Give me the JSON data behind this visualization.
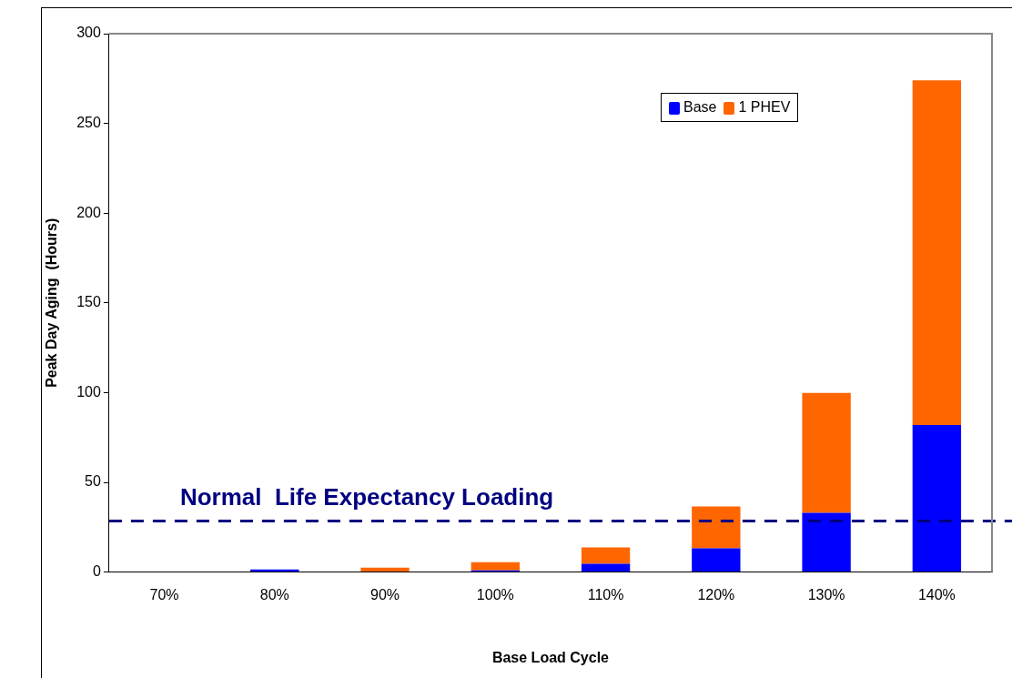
{
  "chart_data": {
    "type": "bar",
    "stacked": true,
    "xlabel": "Base Load Cycle",
    "ylabel": "Peak Day Aging  (Hours)",
    "categories": [
      "70%",
      "80%",
      "90%",
      "100%",
      "110%",
      "120%",
      "130%",
      "140%"
    ],
    "series": [
      {
        "name": "Base",
        "color": "#0000ff",
        "values": [
          0,
          1.5,
          0,
          1,
          4.6,
          13.2,
          33,
          82
        ]
      },
      {
        "name": "1 PHEV",
        "color": "#ff6600",
        "values": [
          0,
          0,
          2.5,
          4.5,
          9.1,
          23.3,
          66.8,
          192
        ]
      }
    ],
    "ylim": [
      0,
      300
    ],
    "yticks": [
      0,
      50,
      100,
      150,
      200,
      250,
      300
    ],
    "grid": false,
    "legend": "top right",
    "ref_lines": [
      {
        "axis": "y",
        "value": 28.4,
        "label": "Normal  Life Expectancy Loading",
        "color": "#000080",
        "line_style": "dashed"
      }
    ]
  }
}
